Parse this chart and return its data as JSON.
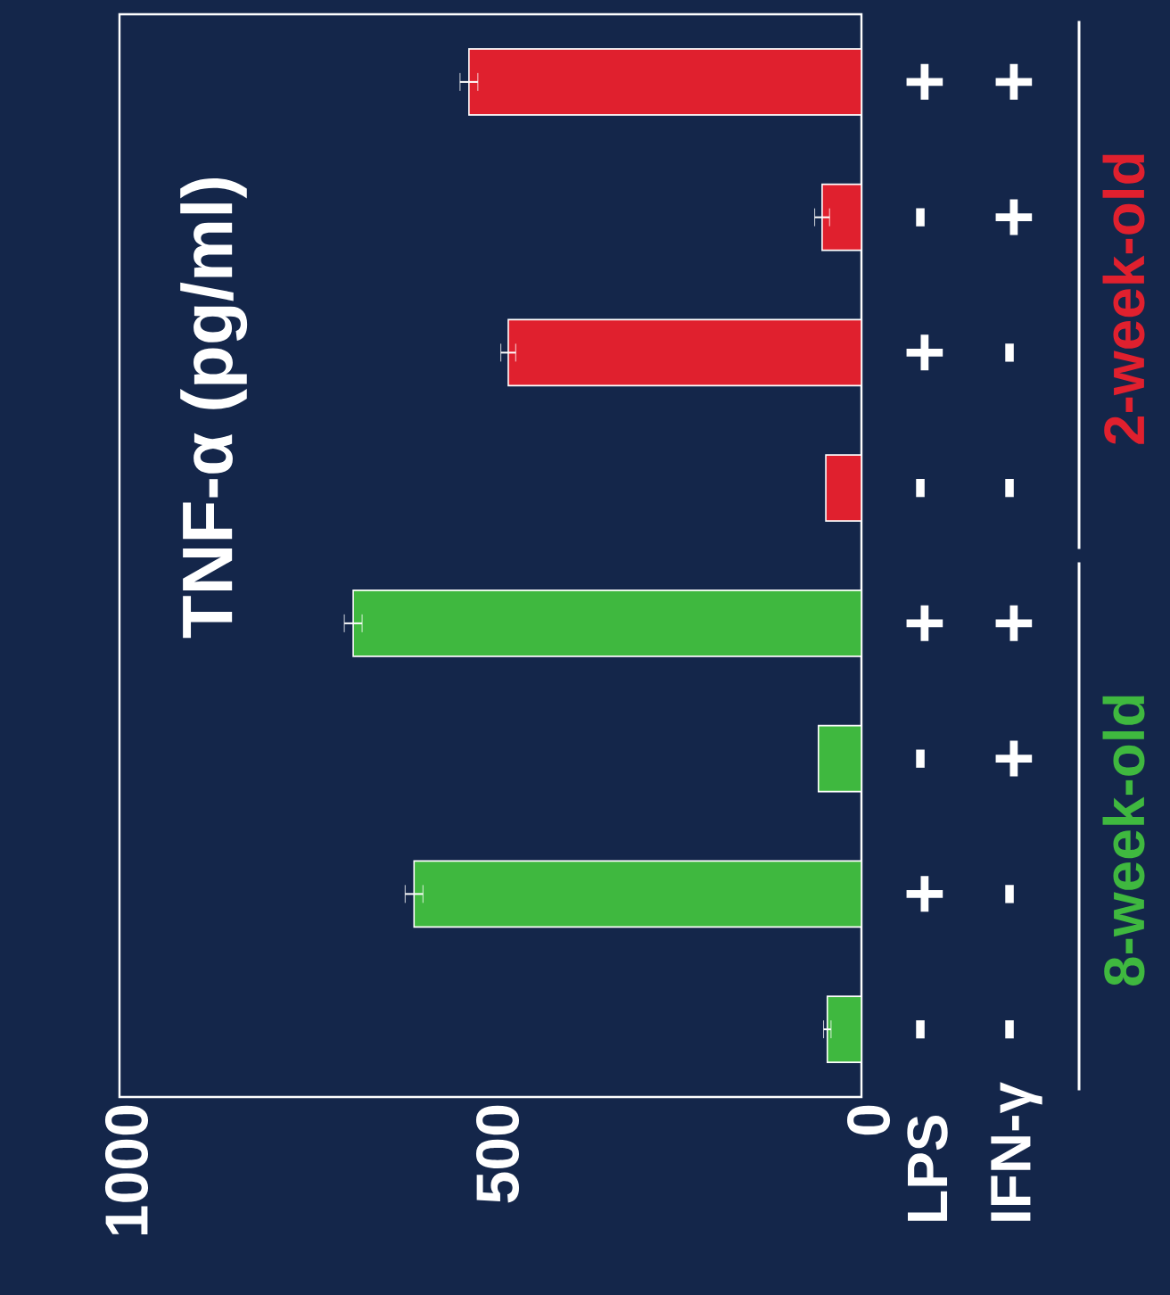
{
  "chart_data": {
    "type": "bar",
    "orientation": "horizontal",
    "title": "TNF-α (pg/ml)",
    "categories": [
      "+",
      "-",
      "+",
      "-",
      "+",
      "-",
      "+",
      "-"
    ],
    "values": [
      529,
      53,
      476,
      48,
      685,
      58,
      603,
      46
    ],
    "errors": [
      12,
      10,
      10,
      null,
      12,
      null,
      12,
      5
    ],
    "colors": [
      "#e0202e",
      "#e0202e",
      "#e0202e",
      "#e0202e",
      "#3fb83f",
      "#3fb83f",
      "#3fb83f",
      "#3fb83f"
    ],
    "xlim": [
      1000,
      0
    ],
    "xticks": [
      0,
      500,
      1000
    ],
    "annotations": [
      "LPS",
      "IFN-γ",
      "+",
      "+",
      "-",
      "-",
      "+",
      "+",
      "-",
      "-",
      "2-week-old",
      "8-week-old"
    ]
  }
}
